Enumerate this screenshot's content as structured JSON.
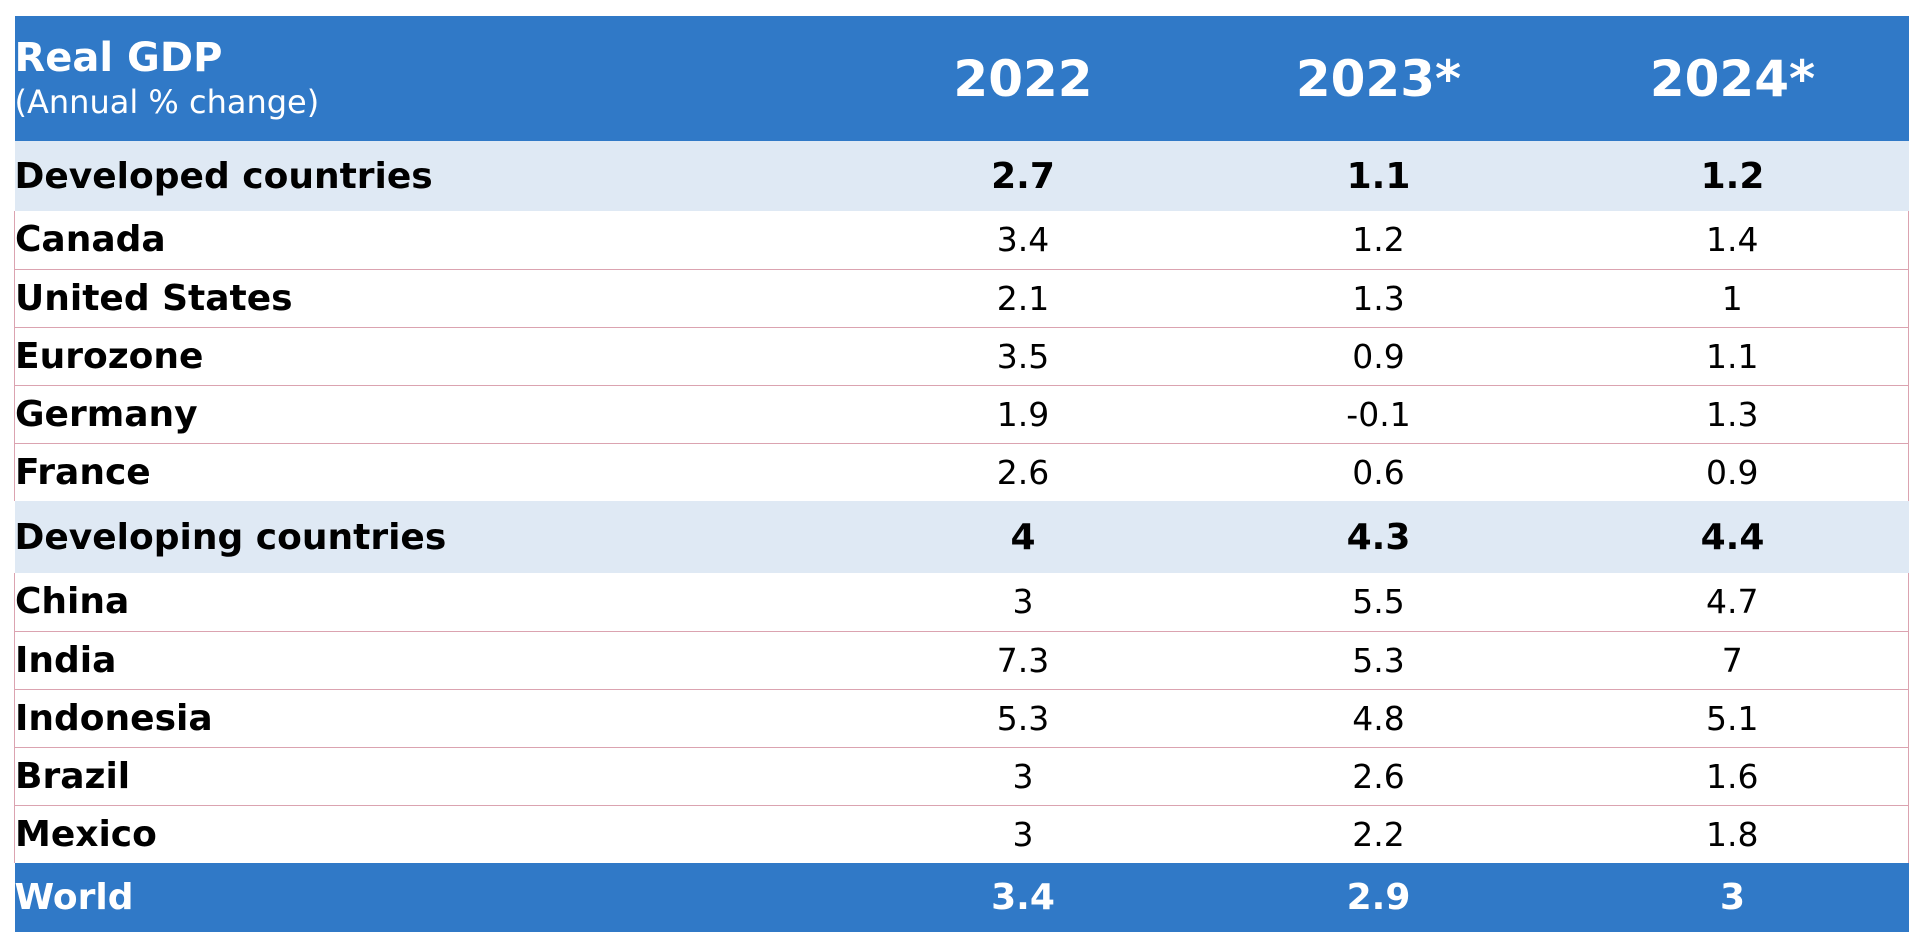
{
  "chart_data": {
    "type": "table",
    "title": "Real GDP",
    "subtitle": "(Annual % change)",
    "columns": [
      "2022",
      "2023*",
      "2024*"
    ],
    "groups": [
      {
        "name": "Developed countries",
        "values": [
          "2.7",
          "1.1",
          "1.2"
        ],
        "rows": [
          {
            "name": "Canada",
            "values": [
              "3.4",
              "1.2",
              "1.4"
            ],
            "sub": false
          },
          {
            "name": "United States",
            "values": [
              "2.1",
              "1.3",
              "1"
            ],
            "sub": false
          },
          {
            "name": "Eurozone",
            "values": [
              "3.5",
              "0.9",
              "1.1"
            ],
            "sub": false
          },
          {
            "name": "Germany",
            "values": [
              "1.9",
              "-0.1",
              "1.3"
            ],
            "sub": true
          },
          {
            "name": "France",
            "values": [
              "2.6",
              "0.6",
              "0.9"
            ],
            "sub": true
          }
        ]
      },
      {
        "name": "Developing countries",
        "values": [
          "4",
          "4.3",
          "4.4"
        ],
        "rows": [
          {
            "name": "China",
            "values": [
              "3",
              "5.5",
              "4.7"
            ],
            "sub": false
          },
          {
            "name": "India",
            "values": [
              "7.3",
              "5.3",
              "7"
            ],
            "sub": false
          },
          {
            "name": "Indonesia",
            "values": [
              "5.3",
              "4.8",
              "5.1"
            ],
            "sub": false
          },
          {
            "name": "Brazil",
            "values": [
              "3",
              "2.6",
              "1.6"
            ],
            "sub": false
          },
          {
            "name": "Mexico",
            "values": [
              "3",
              "2.2",
              "1.8"
            ],
            "sub": false
          }
        ]
      }
    ],
    "total": {
      "name": "World",
      "values": [
        "3.4",
        "2.9",
        "3"
      ]
    }
  },
  "colors": {
    "header_background": "#3079c7",
    "group_background": "#dfe9f4",
    "row_divider": "#dba3b0",
    "header_text": "#ffffff"
  }
}
